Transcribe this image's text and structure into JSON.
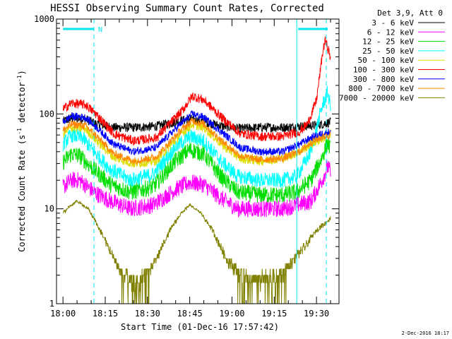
{
  "chart_data": {
    "type": "line",
    "title": "HESSI Observing Summary Count Rates, Corrected",
    "xlabel": "Start Time (01-Dec-16 17:57:42)",
    "ylabel_main": "Corrected Count Rate (s",
    "ylabel_sup1": "-1",
    "ylabel_mid": " detector",
    "ylabel_sup2": "-1",
    "ylabel_end": ")",
    "yscale": "log",
    "ylim": [
      1,
      1000
    ],
    "yticks": [
      {
        "v": 1,
        "label": "1"
      },
      {
        "v": 10,
        "label": "10"
      },
      {
        "v": 100,
        "label": "100"
      },
      {
        "v": 1000,
        "label": "1000"
      }
    ],
    "xlim_min": [
      -2.3,
      38.0
    ],
    "xticks": [
      {
        "v": 0,
        "label": "18:00"
      },
      {
        "v": 15,
        "label": "18:15"
      },
      {
        "v": 30,
        "label": "18:30"
      },
      {
        "v": 45,
        "label": "18:45"
      },
      {
        "v": 60,
        "label": "19:00"
      },
      {
        "v": 75,
        "label": "19:15"
      },
      {
        "v": 90,
        "label": "19:30"
      }
    ],
    "legend_header": "Det 3,9, Att 0",
    "legend_position": "right",
    "annotation_N": "N",
    "timestamp": "2-Dec-2016 18:17",
    "bars": [
      {
        "x1": 0.0,
        "x2": 11.0
      },
      {
        "x1": 83.5,
        "x2": 94.0
      }
    ],
    "dashed_lines": [
      11.0,
      93.5
    ],
    "solid_lines": [
      83.0
    ],
    "series": [
      {
        "name": "3 - 6 keV",
        "color": "#000000",
        "noise": 0.05,
        "points": [
          [
            0,
            83
          ],
          [
            3,
            90
          ],
          [
            8,
            88
          ],
          [
            12,
            78
          ],
          [
            18,
            72
          ],
          [
            25,
            72
          ],
          [
            33,
            74
          ],
          [
            42,
            85
          ],
          [
            45,
            88
          ],
          [
            48,
            85
          ],
          [
            56,
            75
          ],
          [
            62,
            70
          ],
          [
            70,
            72
          ],
          [
            78,
            72
          ],
          [
            84,
            74
          ],
          [
            88,
            75
          ],
          [
            92,
            78
          ],
          [
            95,
            82
          ]
        ]
      },
      {
        "name": "6 - 12 keV",
        "color": "#ff00ff",
        "noise": 0.09,
        "points": [
          [
            0,
            17
          ],
          [
            3,
            20
          ],
          [
            6,
            20
          ],
          [
            11,
            15
          ],
          [
            17,
            12
          ],
          [
            24,
            10
          ],
          [
            32,
            11
          ],
          [
            40,
            16
          ],
          [
            45,
            19
          ],
          [
            50,
            18
          ],
          [
            56,
            13
          ],
          [
            62,
            10
          ],
          [
            70,
            10
          ],
          [
            78,
            10
          ],
          [
            83,
            11
          ],
          [
            88,
            12
          ],
          [
            92,
            20
          ],
          [
            94,
            28
          ],
          [
            95,
            24
          ]
        ]
      },
      {
        "name": "12 - 25 keV",
        "color": "#00dd00",
        "noise": 0.09,
        "points": [
          [
            0,
            31
          ],
          [
            3,
            38
          ],
          [
            6,
            36
          ],
          [
            11,
            26
          ],
          [
            17,
            18
          ],
          [
            24,
            15
          ],
          [
            32,
            17
          ],
          [
            40,
            32
          ],
          [
            45,
            42
          ],
          [
            50,
            38
          ],
          [
            56,
            22
          ],
          [
            62,
            15
          ],
          [
            70,
            14
          ],
          [
            78,
            14
          ],
          [
            83,
            15
          ],
          [
            88,
            20
          ],
          [
            92,
            35
          ],
          [
            94,
            50
          ],
          [
            95,
            42
          ]
        ]
      },
      {
        "name": "25 - 50 keV",
        "color": "#00ffff",
        "noise": 0.08,
        "points": [
          [
            0,
            48
          ],
          [
            3,
            60
          ],
          [
            7,
            56
          ],
          [
            11,
            40
          ],
          [
            17,
            26
          ],
          [
            24,
            20
          ],
          [
            32,
            23
          ],
          [
            40,
            45
          ],
          [
            45,
            58
          ],
          [
            50,
            52
          ],
          [
            56,
            32
          ],
          [
            62,
            22
          ],
          [
            70,
            20
          ],
          [
            78,
            20
          ],
          [
            83,
            22
          ],
          [
            88,
            40
          ],
          [
            92,
            120
          ],
          [
            94,
            170
          ],
          [
            95,
            120
          ]
        ]
      },
      {
        "name": "50 - 100 keV",
        "color": "#dddd00",
        "noise": 0.05,
        "points": [
          [
            0,
            62
          ],
          [
            3,
            72
          ],
          [
            8,
            70
          ],
          [
            12,
            52
          ],
          [
            18,
            35
          ],
          [
            25,
            30
          ],
          [
            33,
            32
          ],
          [
            42,
            62
          ],
          [
            46,
            78
          ],
          [
            50,
            72
          ],
          [
            57,
            46
          ],
          [
            63,
            34
          ],
          [
            70,
            32
          ],
          [
            78,
            34
          ],
          [
            84,
            40
          ],
          [
            88,
            48
          ],
          [
            92,
            55
          ],
          [
            95,
            62
          ]
        ]
      },
      {
        "name": "100 - 300 keV",
        "color": "#ff0000",
        "noise": 0.05,
        "points": [
          [
            0,
            112
          ],
          [
            3,
            130
          ],
          [
            8,
            125
          ],
          [
            12,
            98
          ],
          [
            18,
            62
          ],
          [
            25,
            52
          ],
          [
            33,
            56
          ],
          [
            42,
            105
          ],
          [
            46,
            155
          ],
          [
            50,
            140
          ],
          [
            57,
            88
          ],
          [
            63,
            62
          ],
          [
            70,
            58
          ],
          [
            78,
            58
          ],
          [
            84,
            65
          ],
          [
            87,
            80
          ],
          [
            90,
            140
          ],
          [
            92,
            400
          ],
          [
            93,
            600
          ],
          [
            94.5,
            450
          ],
          [
            95,
            380
          ]
        ]
      },
      {
        "name": "300 - 800 keV",
        "color": "#0000ff",
        "noise": 0.04,
        "points": [
          [
            0,
            82
          ],
          [
            3,
            95
          ],
          [
            8,
            92
          ],
          [
            12,
            72
          ],
          [
            18,
            48
          ],
          [
            25,
            40
          ],
          [
            33,
            44
          ],
          [
            42,
            80
          ],
          [
            46,
            100
          ],
          [
            50,
            92
          ],
          [
            57,
            62
          ],
          [
            63,
            44
          ],
          [
            70,
            40
          ],
          [
            78,
            40
          ],
          [
            84,
            48
          ],
          [
            88,
            56
          ],
          [
            92,
            62
          ],
          [
            95,
            65
          ]
        ]
      },
      {
        "name": "800 - 7000 keV",
        "color": "#ff8800",
        "noise": 0.04,
        "points": [
          [
            0,
            67
          ],
          [
            3,
            78
          ],
          [
            8,
            75
          ],
          [
            12,
            58
          ],
          [
            18,
            38
          ],
          [
            25,
            32
          ],
          [
            33,
            35
          ],
          [
            42,
            68
          ],
          [
            46,
            85
          ],
          [
            50,
            78
          ],
          [
            57,
            50
          ],
          [
            63,
            36
          ],
          [
            70,
            33
          ],
          [
            78,
            34
          ],
          [
            84,
            40
          ],
          [
            88,
            50
          ],
          [
            92,
            57
          ],
          [
            95,
            60
          ]
        ]
      },
      {
        "name": "7000 - 20000 keV",
        "color": "#808000",
        "noise": 0.0,
        "step": true,
        "points": [
          [
            0,
            9
          ],
          [
            3,
            11
          ],
          [
            5,
            12
          ],
          [
            9,
            10
          ],
          [
            12,
            7
          ],
          [
            16,
            4
          ],
          [
            21,
            2
          ],
          [
            26,
            1.6
          ],
          [
            32,
            2.5
          ],
          [
            38,
            6
          ],
          [
            42,
            9
          ],
          [
            45,
            11
          ],
          [
            49,
            9
          ],
          [
            53,
            6
          ],
          [
            58,
            3
          ],
          [
            63,
            2
          ],
          [
            70,
            1.8
          ],
          [
            78,
            2
          ],
          [
            82,
            3
          ],
          [
            86,
            4
          ],
          [
            90,
            6
          ],
          [
            93,
            7
          ],
          [
            95,
            8
          ]
        ]
      }
    ]
  }
}
